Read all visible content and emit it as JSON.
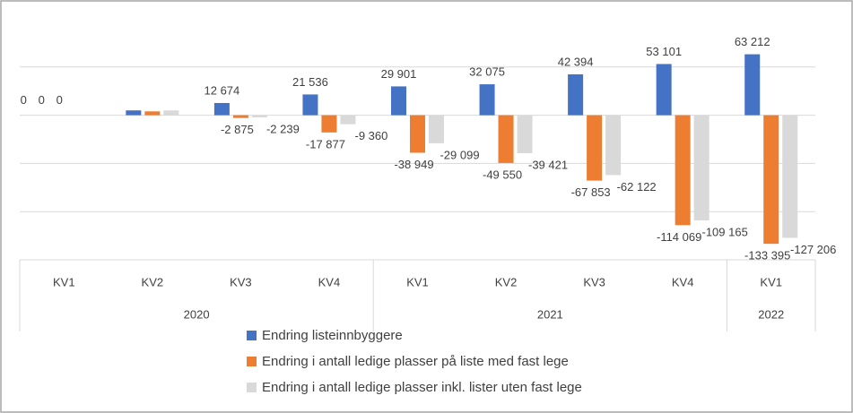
{
  "chart_data": {
    "type": "bar",
    "categories": [
      "KV1",
      "KV2",
      "KV3",
      "KV4",
      "KV1",
      "KV2",
      "KV3",
      "KV4",
      "KV1"
    ],
    "groups": [
      {
        "label": "2020",
        "span": 4
      },
      {
        "label": "2021",
        "span": 4
      },
      {
        "label": "2022",
        "span": 1
      }
    ],
    "series": [
      {
        "name": "Endring listeinnbyggere",
        "color": "#4472c4",
        "values": [
          0,
          5000,
          12674,
          21536,
          29901,
          32075,
          42394,
          53101,
          63212
        ],
        "value_labels": [
          "0",
          null,
          "12 674",
          "21 536",
          "29 901",
          "32 075",
          "42 394",
          "53 101",
          "63 212"
        ]
      },
      {
        "name": "Endring i antall ledige plasser på liste med fast lege",
        "color": "#ed7d31",
        "values": [
          0,
          4000,
          -2875,
          -17877,
          -38949,
          -49550,
          -67853,
          -114069,
          -133395
        ],
        "value_labels": [
          "0",
          null,
          "-2 875",
          "-17 877",
          "-38 949",
          "-49 550",
          "-67 853",
          "-114 069",
          "-133 395"
        ]
      },
      {
        "name": "Endring i antall ledige plasser inkl. lister uten fast lege",
        "color": "#d9d9d9",
        "values": [
          0,
          5000,
          -2239,
          -9360,
          -29099,
          -39421,
          -62122,
          -109165,
          -127206
        ],
        "value_labels": [
          "0",
          null,
          "-2 239",
          "-9 360",
          "-29 099",
          "-39 421",
          "-62 122",
          "-109 165",
          "-127 206"
        ]
      }
    ],
    "ylim": [
      -150000,
      100000
    ],
    "yticks": [
      -100000,
      -50000,
      0,
      50000
    ],
    "grid": true
  }
}
